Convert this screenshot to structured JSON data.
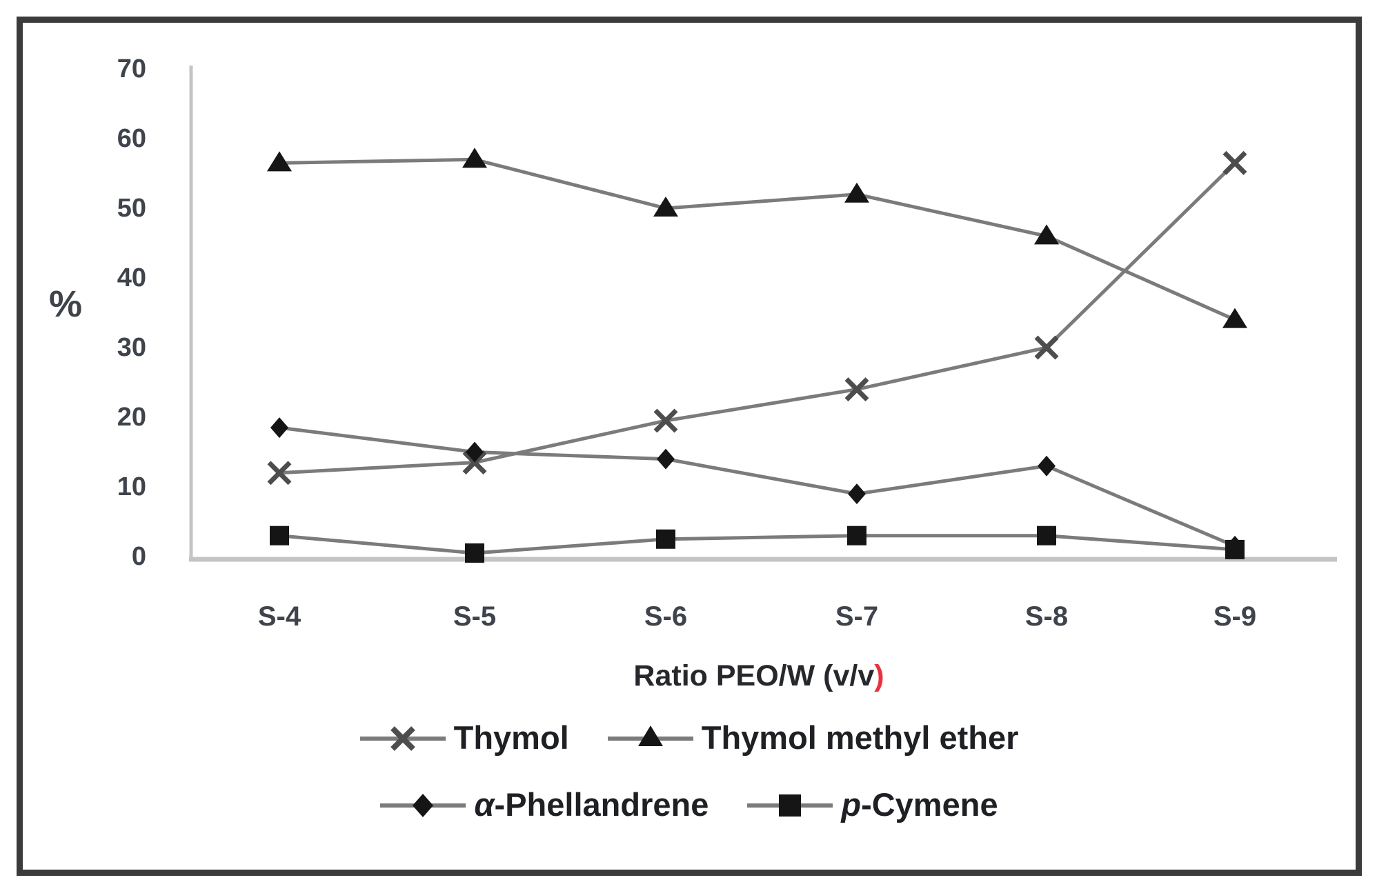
{
  "figure": {
    "percent_label": "%",
    "xlabel_main": "Ratio PEO/W (v/v",
    "xlabel_paren": ")",
    "paren_color": "#e8333f",
    "frame_color": "#3b3b3b",
    "axis_color": "#c4c4c4",
    "tick_text_color": "#3f434b"
  },
  "chart_data": {
    "type": "line",
    "title": "",
    "xlabel": "Ratio PEO/W (v/v)",
    "ylabel": "%",
    "ylim": [
      0,
      70
    ],
    "yticks": [
      0,
      10,
      20,
      30,
      40,
      50,
      60,
      70
    ],
    "grid": false,
    "legend_position": "bottom",
    "line_color": "#7b7b7b",
    "marker_color": "#151515",
    "x_marker_color": "#4d4d4d",
    "categories": [
      "S-4",
      "S-5",
      "S-6",
      "S-7",
      "S-8",
      "S-9"
    ],
    "series": [
      {
        "name": "Thymol",
        "marker": "x",
        "values": [
          12,
          13.5,
          19.5,
          24,
          30,
          56.5
        ],
        "label_parts": {
          "italic": "",
          "text": "Thymol"
        }
      },
      {
        "name": "Thymol methyl ether",
        "marker": "triangle",
        "values": [
          56.5,
          57,
          50,
          52,
          46,
          34
        ],
        "label_parts": {
          "italic": "",
          "text": "Thymol methyl ether"
        }
      },
      {
        "name": "α-Phellandrene",
        "marker": "diamond",
        "values": [
          18.5,
          15,
          14,
          9,
          13,
          1.5
        ],
        "label_parts": {
          "italic": "α",
          "text": "-Phellandrene"
        }
      },
      {
        "name": "p-Cymene",
        "marker": "square",
        "values": [
          3,
          0.5,
          2.5,
          3,
          3,
          1
        ],
        "label_parts": {
          "italic": "p",
          "text": "-Cymene"
        }
      }
    ],
    "legend_rows": [
      [
        0,
        1
      ],
      [
        2,
        3
      ]
    ]
  }
}
